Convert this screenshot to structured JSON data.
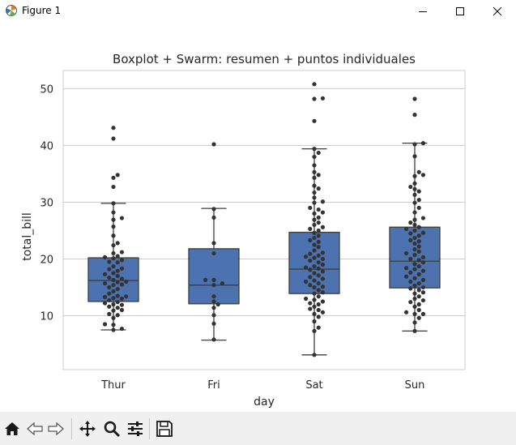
{
  "window": {
    "title": "Figure 1",
    "controls": [
      "minimize",
      "maximize",
      "close"
    ]
  },
  "toolbar": {
    "buttons": [
      "home-icon",
      "back-arrow-icon",
      "forward-arrow-icon",
      "pan-move-icon",
      "zoom-magnifier-icon",
      "configure-subplots-icon",
      "save-floppy-icon"
    ]
  },
  "colors": {
    "box_fill": "#4c72b0",
    "box_edge": "#3d3d3d",
    "point": "#333333",
    "grid": "#cccccc",
    "toolbar_bg": "#f0f0f0"
  },
  "chart_data": {
    "type": "boxplot+swarm",
    "title": "Boxplot + Swarm: resumen + puntos individuales",
    "xlabel": "day",
    "ylabel": "total_bill",
    "categories": [
      "Thur",
      "Fri",
      "Sat",
      "Sun"
    ],
    "ylim": [
      0.5,
      53.2
    ],
    "yticks": [
      10,
      20,
      30,
      40,
      50
    ],
    "grid": true,
    "boxes": [
      {
        "category": "Thur",
        "whislo": 7.5,
        "q1": 12.5,
        "med": 16.2,
        "q3": 20.2,
        "whishi": 29.8
      },
      {
        "category": "Fri",
        "whislo": 5.7,
        "q1": 12.1,
        "med": 15.4,
        "q3": 21.8,
        "whishi": 28.9
      },
      {
        "category": "Sat",
        "whislo": 3.1,
        "q1": 13.9,
        "med": 18.2,
        "q3": 24.7,
        "whishi": 39.4
      },
      {
        "category": "Sun",
        "whislo": 7.3,
        "q1": 14.9,
        "med": 19.6,
        "q3": 25.6,
        "whishi": 40.4
      }
    ],
    "points": [
      [
        7.5,
        7.7,
        8.4,
        8.5,
        9.6,
        10.1,
        10.3,
        10.9,
        11.0,
        11.4,
        11.6,
        11.9,
        12.0,
        12.2,
        12.4,
        12.7,
        13.0,
        13.1,
        13.3,
        13.4,
        13.5,
        13.9,
        14.3,
        14.7,
        15.0,
        15.4,
        15.5,
        15.7,
        15.9,
        16.0,
        16.3,
        16.5,
        16.7,
        17.0,
        17.3,
        17.5,
        17.9,
        18.2,
        18.3,
        18.7,
        19.4,
        19.5,
        19.8,
        20.1,
        20.3,
        20.5,
        21.0,
        21.2,
        22.4,
        22.8,
        24.1,
        25.7,
        26.9,
        27.2,
        28.2,
        29.8,
        32.7,
        34.3,
        34.8,
        41.2,
        43.1
      ],
      [
        5.8,
        8.6,
        10.1,
        11.4,
        12.0,
        12.5,
        13.4,
        15.4,
        15.7,
        16.3,
        16.3,
        21.0,
        22.8,
        27.3,
        28.8,
        40.2
      ],
      [
        3.1,
        7.3,
        7.9,
        9.0,
        9.8,
        10.3,
        10.6,
        11.0,
        11.2,
        11.6,
        12.0,
        12.2,
        12.5,
        12.8,
        13.0,
        13.4,
        13.9,
        14.1,
        14.5,
        15.0,
        15.1,
        15.4,
        15.7,
        16.0,
        16.2,
        16.5,
        16.8,
        17.1,
        17.5,
        17.8,
        18.1,
        18.3,
        18.5,
        18.7,
        19.0,
        19.4,
        19.7,
        20.0,
        20.2,
        20.4,
        20.6,
        20.9,
        21.1,
        21.5,
        22.1,
        22.5,
        23.0,
        23.3,
        23.7,
        24.1,
        24.6,
        25.0,
        25.3,
        25.6,
        26.0,
        26.4,
        26.9,
        27.3,
        28.0,
        28.2,
        28.7,
        29.0,
        29.9,
        30.1,
        30.8,
        31.7,
        32.4,
        32.9,
        34.3,
        34.8,
        35.3,
        36.5,
        38.0,
        38.7,
        39.4,
        44.3,
        48.2,
        48.3,
        50.8
      ],
      [
        7.3,
        8.8,
        9.6,
        10.3,
        10.3,
        10.6,
        11.0,
        11.6,
        12.0,
        12.4,
        12.7,
        13.0,
        13.4,
        13.9,
        14.1,
        14.5,
        14.8,
        15.0,
        15.3,
        15.7,
        16.0,
        16.3,
        16.6,
        16.9,
        17.3,
        17.6,
        17.9,
        18.2,
        18.4,
        18.7,
        19.1,
        19.4,
        19.8,
        20.0,
        20.3,
        20.7,
        21.0,
        21.3,
        21.7,
        22.2,
        22.7,
        23.1,
        23.3,
        23.7,
        24.1,
        24.5,
        24.6,
        25.0,
        25.3,
        25.6,
        26.0,
        26.4,
        26.9,
        27.2,
        28.2,
        29.0,
        29.9,
        30.4,
        31.3,
        31.9,
        32.3,
        32.7,
        33.3,
        34.6,
        34.8,
        35.3,
        38.1,
        40.2,
        40.4,
        45.4,
        48.2
      ]
    ]
  }
}
